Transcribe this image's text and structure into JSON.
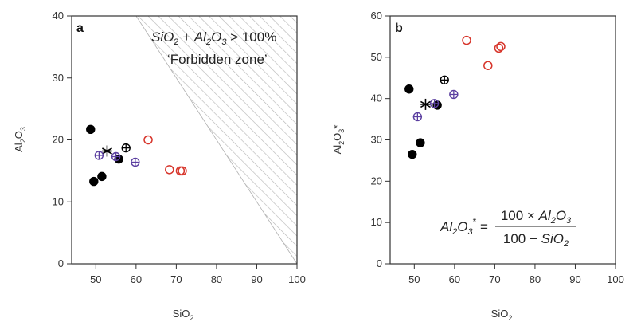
{
  "chart_data": [
    {
      "type": "scatter",
      "panel_label": "a",
      "xlabel": "SiO2",
      "ylabel": "Al2O3",
      "xlim": [
        44,
        100
      ],
      "ylim": [
        0,
        40
      ],
      "xticks": [
        "50",
        "60",
        "70",
        "80",
        "90",
        "100"
      ],
      "yticks": [
        "0",
        "10",
        "20",
        "30",
        "40"
      ],
      "grid": false,
      "forbidden_zone": {
        "label_line1": "SiO2 + Al2O3 > 100%",
        "label_line2": "‘Forbidden zone’",
        "boundary": "x + y = 100",
        "fill": "hatched gray"
      },
      "series": [
        {
          "marker": "filled-circle",
          "color": "#000000",
          "points": [
            [
              48.7,
              21.7
            ],
            [
              49.5,
              13.3
            ],
            [
              51.5,
              14.1
            ],
            [
              55.7,
              16.9
            ]
          ]
        },
        {
          "marker": "asterisk",
          "color": "#000000",
          "points": [
            [
              52.8,
              18.2
            ]
          ]
        },
        {
          "marker": "circle-plus",
          "color": "#000000",
          "points": [
            [
              57.5,
              18.7
            ]
          ]
        },
        {
          "marker": "circle-plus",
          "color": "#5b3fa0",
          "points": [
            [
              50.8,
              17.5
            ],
            [
              55.0,
              17.3
            ],
            [
              59.8,
              16.4
            ]
          ]
        },
        {
          "marker": "open-circle",
          "color": "#d7352b",
          "points": [
            [
              63.0,
              20.0
            ],
            [
              68.3,
              15.2
            ],
            [
              71.0,
              15.0
            ],
            [
              71.5,
              15.0
            ]
          ]
        }
      ]
    },
    {
      "type": "scatter",
      "panel_label": "b",
      "xlabel": "SiO2",
      "ylabel": "Al2O3*",
      "xlim": [
        44,
        100
      ],
      "ylim": [
        0,
        60
      ],
      "xticks": [
        "50",
        "60",
        "70",
        "80",
        "90",
        "100"
      ],
      "yticks": [
        "0",
        "10",
        "20",
        "30",
        "40",
        "50",
        "60"
      ],
      "grid": false,
      "formula": {
        "lhs": "Al2O3*",
        "numerator": "100 × Al2O3",
        "denominator": "100 − SiO2"
      },
      "series": [
        {
          "marker": "filled-circle",
          "color": "#000000",
          "points": [
            [
              48.7,
              42.3
            ],
            [
              49.5,
              26.5
            ],
            [
              51.5,
              29.3
            ],
            [
              55.7,
              38.4
            ]
          ]
        },
        {
          "marker": "asterisk",
          "color": "#000000",
          "points": [
            [
              52.8,
              38.6
            ]
          ]
        },
        {
          "marker": "circle-plus",
          "color": "#000000",
          "points": [
            [
              57.5,
              44.5
            ]
          ]
        },
        {
          "marker": "circle-plus",
          "color": "#5b3fa0",
          "points": [
            [
              50.8,
              35.6
            ],
            [
              55.0,
              38.8
            ],
            [
              59.8,
              41.0
            ]
          ]
        },
        {
          "marker": "open-circle",
          "color": "#d7352b",
          "points": [
            [
              63.0,
              54.1
            ],
            [
              68.3,
              48.0
            ],
            [
              71.0,
              52.2
            ],
            [
              71.5,
              52.6
            ]
          ]
        }
      ]
    }
  ]
}
